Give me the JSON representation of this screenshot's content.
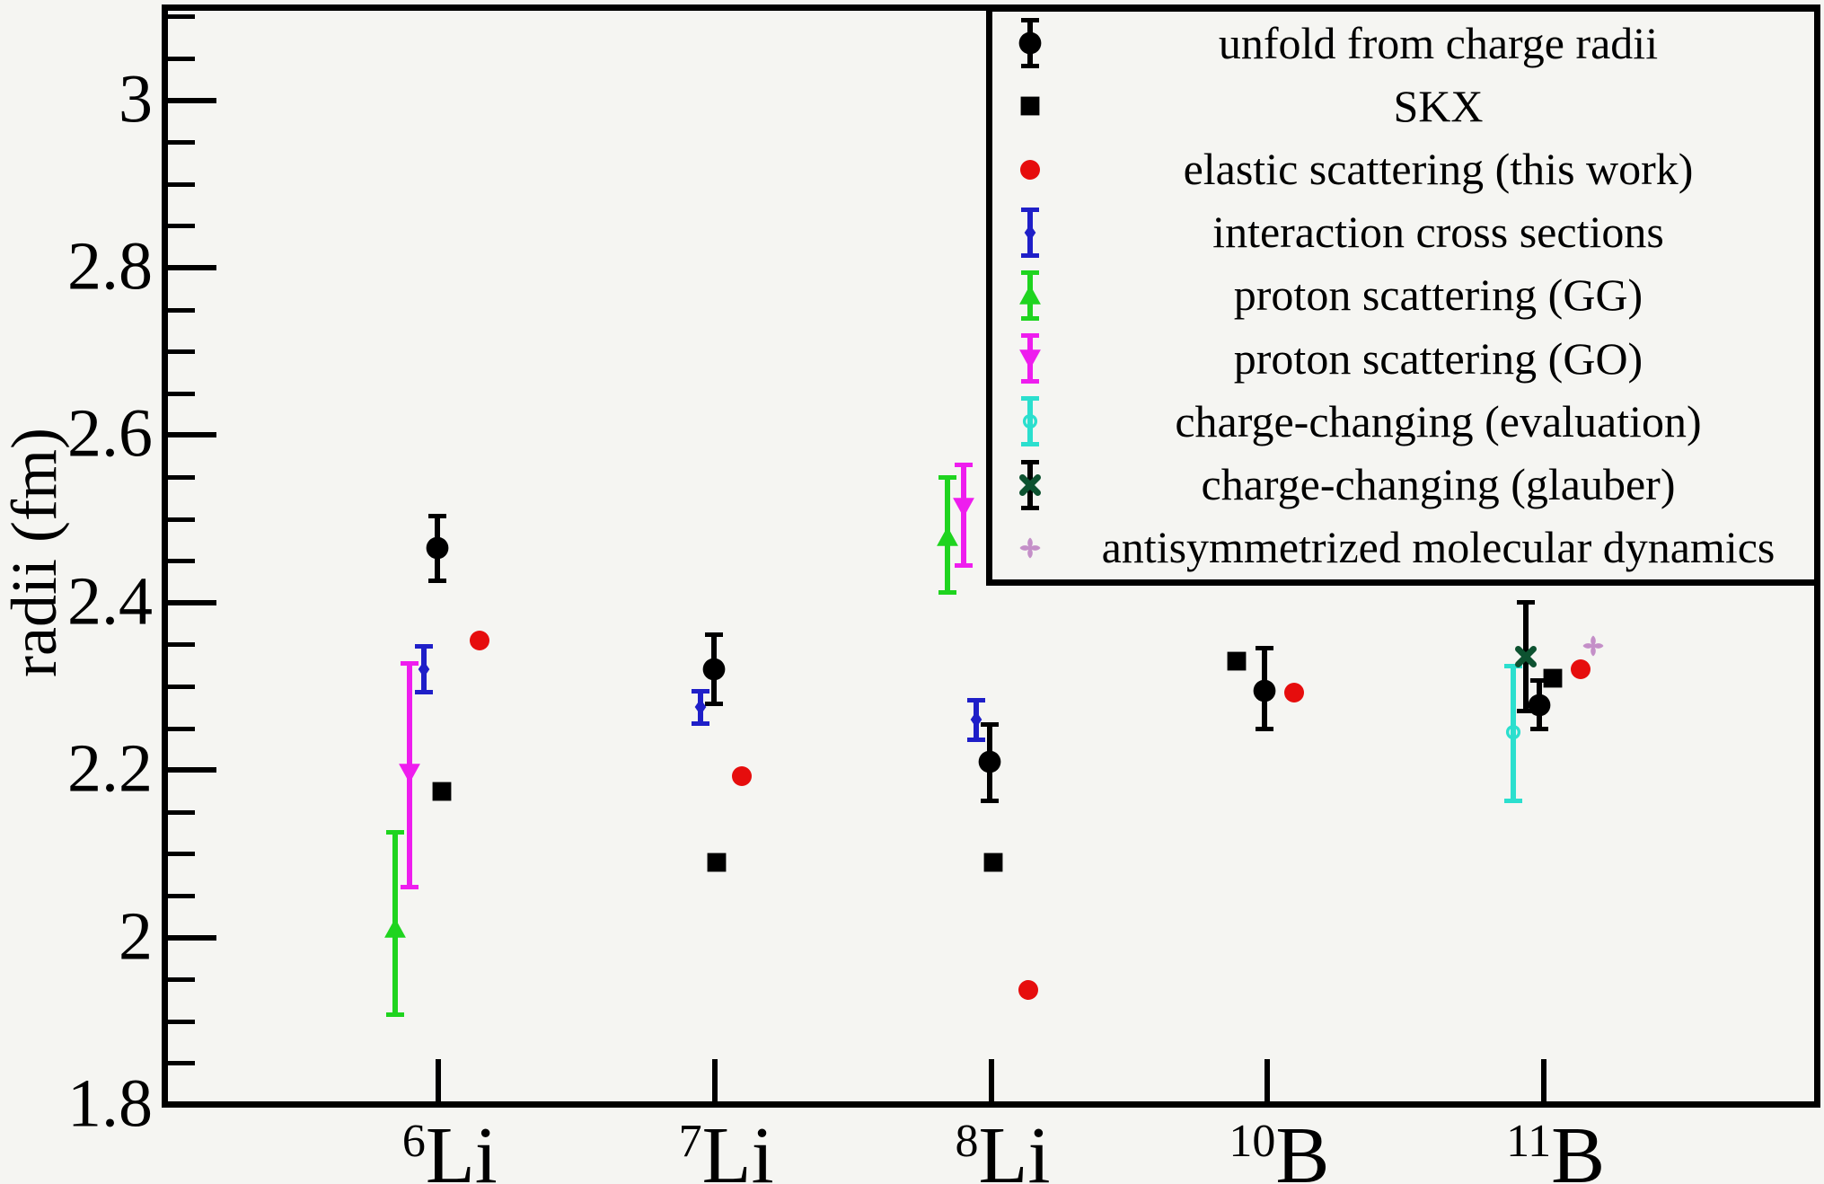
{
  "chart_data": {
    "type": "scatter",
    "title": "",
    "xlabel": "",
    "ylabel": "radii (fm)",
    "ylim": [
      1.8,
      3.12
    ],
    "grid": false,
    "legend_position": "top-right",
    "y_ticks": [
      {
        "v": 3.0,
        "label": "3"
      },
      {
        "v": 2.8,
        "label": "2.8"
      },
      {
        "v": 2.6,
        "label": "2.6"
      },
      {
        "v": 2.4,
        "label": "2.4"
      },
      {
        "v": 2.2,
        "label": "2.2"
      },
      {
        "v": 2.0,
        "label": "2"
      },
      {
        "v": 1.8,
        "label": "1.8"
      }
    ],
    "y_minor_step": 0.05,
    "categories": [
      {
        "sup": "6",
        "base": "Li"
      },
      {
        "sup": "7",
        "base": "Li"
      },
      {
        "sup": "8",
        "base": "Li"
      },
      {
        "sup": "10",
        "base": "B"
      },
      {
        "sup": "11",
        "base": "B"
      }
    ],
    "series": [
      {
        "name": "unfold from charge radii",
        "marker": "circle",
        "color": "#000000",
        "bar_color": "#000000",
        "size": 27,
        "points": [
          {
            "cat": 0,
            "v": 2.465,
            "ep": 0.041,
            "em": 0.042,
            "dx": -1
          },
          {
            "cat": 1,
            "v": 2.32,
            "ep": 0.044,
            "em": 0.044,
            "dx": -1
          },
          {
            "cat": 2,
            "v": 2.21,
            "ep": 0.047,
            "em": 0.049,
            "dx": -2
          },
          {
            "cat": 3,
            "v": 2.295,
            "ep": 0.053,
            "em": 0.049,
            "dx": -3
          },
          {
            "cat": 4,
            "v": 2.278,
            "ep": 0.032,
            "em": 0.032,
            "dx": -5
          }
        ]
      },
      {
        "name": "SKX",
        "marker": "square",
        "color": "#000000",
        "size": 25,
        "points": [
          {
            "cat": 0,
            "v": 2.175,
            "dx": 4
          },
          {
            "cat": 1,
            "v": 2.09,
            "dx": 2
          },
          {
            "cat": 2,
            "v": 2.09,
            "dx": 2
          },
          {
            "cat": 3,
            "v": 2.33,
            "dx": -34
          },
          {
            "cat": 4,
            "v": 2.31,
            "dx": 10
          }
        ]
      },
      {
        "name": "elastic scattering (this work)",
        "marker": "circle",
        "color": "#e60d0d",
        "size": 24,
        "points": [
          {
            "cat": 0,
            "v": 2.355,
            "dx": 46
          },
          {
            "cat": 1,
            "v": 2.193,
            "dx": 30
          },
          {
            "cat": 2,
            "v": 1.937,
            "dx": 41
          },
          {
            "cat": 3,
            "v": 2.292,
            "dx": 30
          },
          {
            "cat": 4,
            "v": 2.32,
            "dx": 41
          }
        ]
      },
      {
        "name": "interaction cross sections",
        "marker": "diamond",
        "color": "#1f1fc8",
        "bar_color": "#1f1fc8",
        "size": 19,
        "points": [
          {
            "cat": 0,
            "v": 2.32,
            "ep": 0.03,
            "em": 0.03,
            "dx": -16
          },
          {
            "cat": 1,
            "v": 2.275,
            "ep": 0.022,
            "em": 0.022,
            "dx": -16
          },
          {
            "cat": 2,
            "v": 2.26,
            "ep": 0.026,
            "em": 0.026,
            "dx": -17
          }
        ]
      },
      {
        "name": "proton scattering (GG)",
        "marker": "triangle-up",
        "color": "#1fd41f",
        "bar_color": "#1fd41f",
        "size": 26,
        "points": [
          {
            "cat": 0,
            "v": 2.01,
            "ep": 0.118,
            "em": 0.105,
            "dx": -48
          },
          {
            "cat": 2,
            "v": 2.478,
            "ep": 0.074,
            "em": 0.069,
            "dx": -49
          }
        ]
      },
      {
        "name": "proton scattering (GO)",
        "marker": "triangle-down",
        "color": "#ee1dee",
        "bar_color": "#ee1dee",
        "size": 26,
        "points": [
          {
            "cat": 0,
            "v": 2.197,
            "ep": 0.133,
            "em": 0.14,
            "dx": -32
          },
          {
            "cat": 2,
            "v": 2.515,
            "ep": 0.052,
            "em": 0.073,
            "dx": -31
          }
        ]
      },
      {
        "name": "charge-changing (evaluation)",
        "marker": "circle-open",
        "color": "#2bdfce",
        "bar_color": "#2bdfce",
        "size": 18,
        "points": [
          {
            "cat": 4,
            "v": 2.245,
            "ep": 0.082,
            "em": 0.085,
            "dx": -34
          }
        ]
      },
      {
        "name": "charge-changing (glauber)",
        "marker": "x-cross",
        "color": "#0d5230",
        "bar_color": "#000000",
        "size": 24,
        "points": [
          {
            "cat": 4,
            "v": 2.335,
            "ep": 0.068,
            "em": 0.067,
            "dx": -20
          }
        ]
      },
      {
        "name": "antisymmetrized molecular dynamics",
        "marker": "clover",
        "color": "#c48fc8",
        "size": 24,
        "points": [
          {
            "cat": 4,
            "v": 2.348,
            "dx": 55
          }
        ]
      }
    ]
  }
}
